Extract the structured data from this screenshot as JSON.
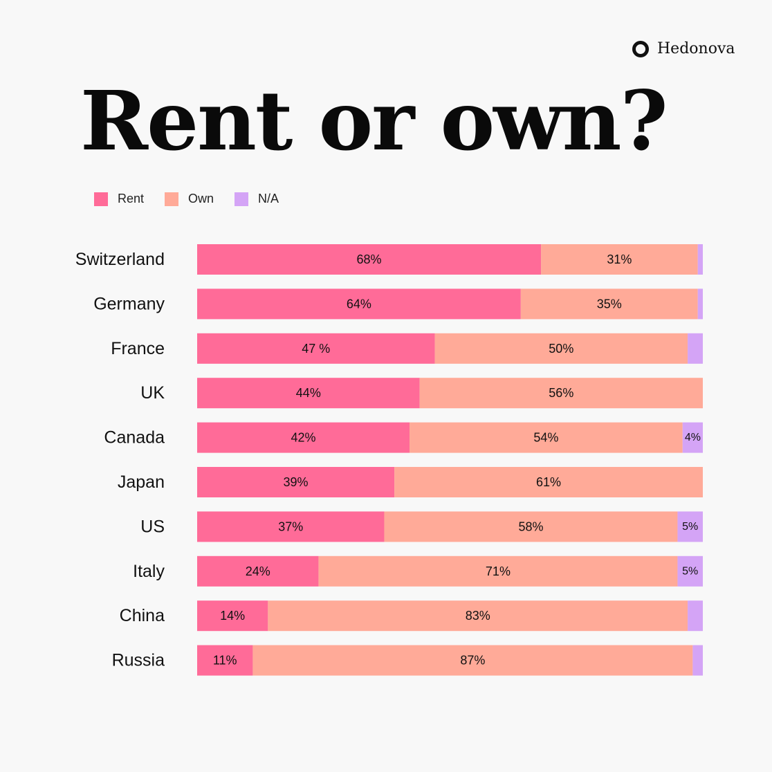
{
  "brand": {
    "name": "Hedonova"
  },
  "colors": {
    "rent": "#ff6b98",
    "own": "#ffaa98",
    "na": "#d4a4f6"
  },
  "chart_data": {
    "type": "bar",
    "orientation": "horizontal",
    "stacked": true,
    "title": "Rent or own?",
    "legend": [
      "Rent",
      "Own",
      "N/A"
    ],
    "legend_position": "top-left",
    "categories": [
      "Switzerland",
      "Germany",
      "France",
      "UK",
      "Canada",
      "Japan",
      "US",
      "Italy",
      "China",
      "Russia"
    ],
    "series": [
      {
        "name": "Rent",
        "values": [
          68,
          64,
          47,
          44,
          42,
          39,
          37,
          24,
          14,
          11
        ],
        "labels": [
          "68%",
          "64%",
          "47 %",
          "44%",
          "42%",
          "39%",
          "37%",
          "24%",
          "14%",
          "11%"
        ]
      },
      {
        "name": "Own",
        "values": [
          31,
          35,
          50,
          56,
          54,
          61,
          58,
          71,
          83,
          87
        ],
        "labels": [
          "31%",
          "35%",
          "50%",
          "56%",
          "54%",
          "61%",
          "58%",
          "71%",
          "83%",
          "87%"
        ]
      },
      {
        "name": "N/A",
        "values": [
          1,
          1,
          3,
          0,
          4,
          0,
          5,
          5,
          3,
          2
        ],
        "labels": [
          "",
          "",
          "",
          "",
          "4%",
          "",
          "5%",
          "5%",
          "",
          ""
        ]
      }
    ],
    "xlim": [
      0,
      100
    ],
    "grid": false
  }
}
